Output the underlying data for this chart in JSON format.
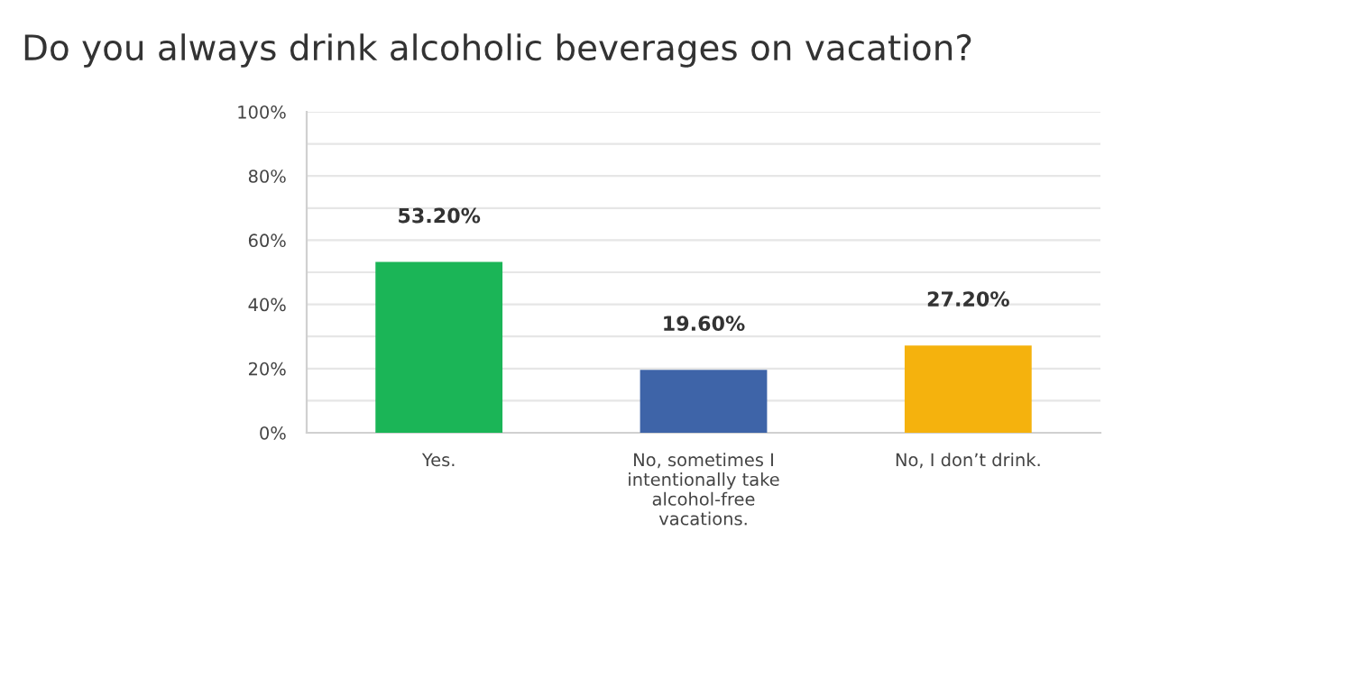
{
  "chart_data": {
    "type": "bar",
    "title": "Do you always drink alcoholic beverages on vacation?",
    "categories": [
      "Yes.",
      "No, sometimes I\nintentionally take\nalcohol-free\nvacations.",
      "No, I don’t drink."
    ],
    "values": [
      53.2,
      19.6,
      27.2
    ],
    "colors": [
      "#1bb557",
      "#3e64a8",
      "#f5b20d"
    ],
    "value_labels": [
      "53.20%",
      "19.60%",
      "27.20%"
    ],
    "ylim": [
      0,
      100
    ],
    "yticks": [
      {
        "value": 0,
        "label": "0%"
      },
      {
        "value": 10,
        "label": null
      },
      {
        "value": 20,
        "label": "20%"
      },
      {
        "value": 30,
        "label": null
      },
      {
        "value": 40,
        "label": "40%"
      },
      {
        "value": 50,
        "label": null
      },
      {
        "value": 60,
        "label": "60%"
      },
      {
        "value": 70,
        "label": null
      },
      {
        "value": 80,
        "label": "80%"
      },
      {
        "value": 90,
        "label": null
      },
      {
        "value": 100,
        "label": "100%"
      }
    ],
    "grid": "y"
  }
}
